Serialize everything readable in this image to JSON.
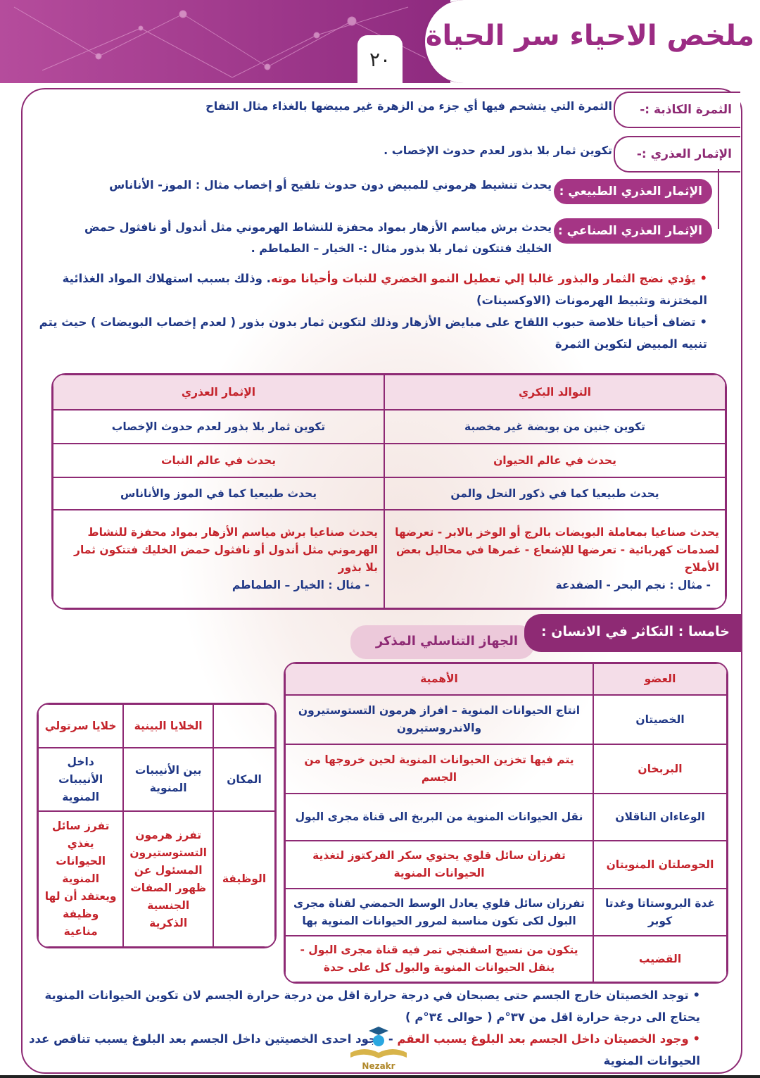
{
  "header": {
    "title": "ملخص الاحياء سر الحياة",
    "page_number": "٢٠"
  },
  "definitions": [
    {
      "label": "الثمرة الكاذبة :-",
      "text": "الثمرة التي يتشحم فيها أي جزء من الزهرة غير مبيضها بالغذاء مثال التفاح"
    },
    {
      "label": "الإثمار العذري :-",
      "text": "تكوين ثمار بلا بذور لعدم حدوث الإخصاب ."
    },
    {
      "label": "الإثمار العذري الطبيعي :",
      "text": "يحدث تنشيط هرموني للمبيض دون حدوث تلقيح أو إخصاب مثال : الموز- الأناناس"
    },
    {
      "label": "الإثمار العذري الصناعي :",
      "text": "يحدث برش مياسم الأزهار بمواد محفزة للنشاط الهرموني مثل أندول أو نافثول حمض الخليك فتتكون ثمار بلا بذور مثال :- الخيار – الطماطم ."
    }
  ],
  "bullets": [
    {
      "red": "يؤدي نضج الثمار والبذور غالبا إلي تعطيل النمو الخضري للنبات وأحيانا موته",
      "blue": ". وذلك بسبب استهلاك المواد الغذائية المختزنة وتثبيط الهرمونات (الاوكسينات)"
    },
    {
      "blue": "تضاف أحيانا خلاصة حبوب اللقاح على مبايض الأزهار وذلك لتكوين ثمار بدون بذور ( لعدم إخصاب البويضات ) حيث يتم تنبيه المبيض لتكوين الثمرة"
    }
  ],
  "comparison_table": {
    "headers": [
      "التوالد البكري",
      "الإثمار العذري"
    ],
    "rows": [
      [
        "تكوين جنين من بويضة غير مخصبة",
        "تكوين ثمار بلا بذور لعدم حدوث الإخصاب"
      ],
      [
        "يحدث في عالم الحيوان",
        "يحدث في عالم النبات"
      ],
      [
        "يحدث طبيعيا كما في ذكور النحل والمن",
        "يحدث طبيعيا كما في الموز والأناناس"
      ]
    ],
    "last_row": {
      "right": "يحدث صناعيا بمعاملة البويضات بالرج أو الوخز بالابر - تعرضها لصدمات كهربائية - تعرضها للإشعاع - غمرها في محاليل بعض الأملاح",
      "right_example": "- مثال : نجم البحر - الضفدعة",
      "left": "يحدث صناعيا برش مياسم الأزهار بمواد محفزة للنشاط الهرموني مثل أندول أو نافثول حمض الخليك فتتكون ثمار بلا بذور",
      "left_example": "- مثال : الخيار – الطماطم"
    }
  },
  "section": {
    "heading": "خامسا : التكاثر في الانسان :",
    "subheading": "الجهاز التناسلي المذكر"
  },
  "organs_table": {
    "headers": [
      "العضو",
      "الأهمية"
    ],
    "rows": [
      [
        "الخصيتان",
        "انتاج الحيوانات المنوية – افراز هرمون التستوستيرون والاندروستيرون"
      ],
      [
        "البربخان",
        "يتم فيها تخزين الحيوانات المنوية لحين خروجها من الجسم"
      ],
      [
        "الوعاءان الناقلان",
        "نقل الحيوانات المنوية من البربخ الى قناة مجرى البول"
      ],
      [
        "الحوصلتان المنويتان",
        "تفرزان سائل قلوي يحتوي سكر الفركتوز لتغذية الحيوانات المنوية"
      ],
      [
        "غدة البروستاتا وغدتا كوبر",
        "تفرزان سائل قلوي يعادل الوسط الحمضي لقناة مجرى البول لكى تكون مناسبة لمرور الحيوانات المنوية بها"
      ],
      [
        "القضيب",
        "يتكون من نسيج اسفنجي تمر فيه قناة مجرى البول - ينقل الحيوانات المنوية والبول كل على حدة"
      ]
    ]
  },
  "cells_table": {
    "headers": [
      "",
      "الخلايا البينية",
      "خلايا سرتولي"
    ],
    "rows": [
      [
        "المكان",
        "بين الأنيببات المنوية",
        "داخل الأنيببات المنوية"
      ],
      [
        "الوظيفة",
        "تفرز هرمون التستوستيرون المسئول عن ظهور الصفات الجنسية الذكرية",
        "تفرز سائل يغذي الحيوانات المنوية ويعتقد أن لها وظيفة مناعية"
      ]
    ]
  },
  "footer_bullets": [
    {
      "blue": "توجد الخصيتان خارج الجسم حتى يصبحان في درجة حرارة اقل من درجة حرارة الجسم لان تكوين الحيوانات المنوية يحتاج الى درجة حرارة اقل من ٣٧°م ( حوالى ٣٤°م )"
    },
    {
      "red": "وجود الخصيتان داخل الجسم بعد البلوغ يسبب العقم",
      "blue": "- وجود احدى الخصيتين داخل الجسم بعد البلوغ يسبب تناقص عدد الحيوانات المنوية"
    }
  ],
  "watermark": {
    "logo_text": "Nezakr نذاكر"
  },
  "colors": {
    "magenta": "#8e2a74",
    "blue_text": "#1f3785",
    "red_text": "#c4232b"
  }
}
